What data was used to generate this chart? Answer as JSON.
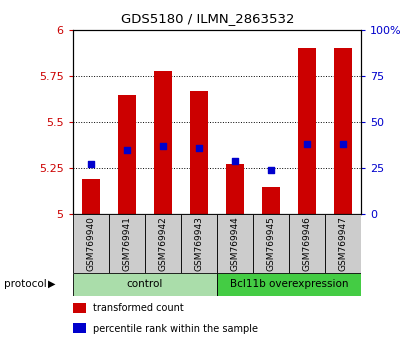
{
  "title": "GDS5180 / ILMN_2863532",
  "samples": [
    "GSM769940",
    "GSM769941",
    "GSM769942",
    "GSM769943",
    "GSM769944",
    "GSM769945",
    "GSM769946",
    "GSM769947"
  ],
  "transformed_counts": [
    5.19,
    5.65,
    5.78,
    5.67,
    5.27,
    5.15,
    5.9,
    5.9
  ],
  "percentile_ranks": [
    27,
    35,
    37,
    36,
    29,
    24,
    38,
    38
  ],
  "ylim_left": [
    5.0,
    6.0
  ],
  "ylim_right": [
    0,
    100
  ],
  "yticks_left": [
    5.0,
    5.25,
    5.5,
    5.75,
    6.0
  ],
  "yticks_right": [
    0,
    25,
    50,
    75,
    100
  ],
  "ytick_labels_left": [
    "5",
    "5.25",
    "5.5",
    "5.75",
    "6"
  ],
  "ytick_labels_right": [
    "0",
    "25",
    "50",
    "75",
    "100%"
  ],
  "groups": [
    {
      "label": "control",
      "start": 0,
      "end": 4,
      "color": "#aaddaa"
    },
    {
      "label": "Bcl11b overexpression",
      "start": 4,
      "end": 8,
      "color": "#44cc44"
    }
  ],
  "sample_box_color": "#cccccc",
  "bar_color": "#cc0000",
  "dot_color": "#0000cc",
  "bar_width": 0.5,
  "bar_bottom": 5.0,
  "protocol_label": "protocol",
  "legend_items": [
    {
      "label": "transformed count",
      "color": "#cc0000"
    },
    {
      "label": "percentile rank within the sample",
      "color": "#0000cc"
    }
  ],
  "tick_label_color_left": "#cc0000",
  "tick_label_color_right": "#0000cc"
}
